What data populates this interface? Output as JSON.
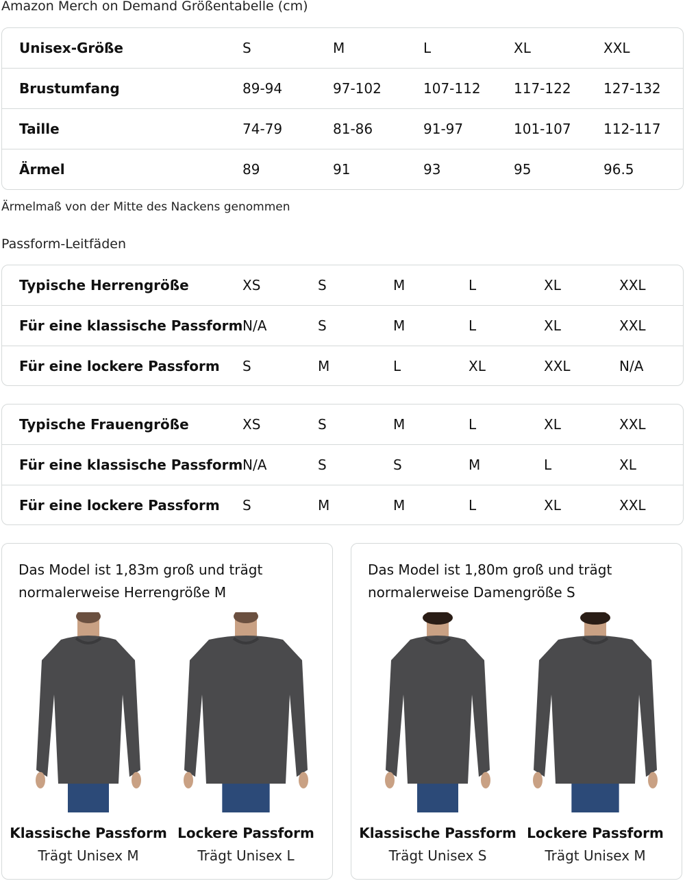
{
  "size_chart": {
    "title": "Amazon Merch on Demand Größentabelle (cm)",
    "rows": [
      {
        "label": "Unisex-Größe",
        "values": [
          "S",
          "M",
          "L",
          "XL",
          "XXL"
        ]
      },
      {
        "label": "Brustumfang",
        "values": [
          "89-94",
          "97-102",
          "107-112",
          "117-122",
          "127-132"
        ]
      },
      {
        "label": "Taille",
        "values": [
          "74-79",
          "81-86",
          "91-97",
          "101-107",
          "112-117"
        ]
      },
      {
        "label": "Ärmel",
        "values": [
          "89",
          "91",
          "93",
          "95",
          "96.5"
        ]
      }
    ],
    "note": "Ärmelmaß von der Mitte des Nackens genommen"
  },
  "fit_guides": {
    "title": "Passform-Leitfäden",
    "men": [
      {
        "label": "Typische Herrengröße",
        "values": [
          "XS",
          "S",
          "M",
          "L",
          "XL",
          "XXL"
        ]
      },
      {
        "label": "Für eine klassische Passform",
        "values": [
          "N/A",
          "S",
          "M",
          "L",
          "XL",
          "XXL"
        ]
      },
      {
        "label": "Für eine lockere Passform",
        "values": [
          "S",
          "M",
          "L",
          "XL",
          "XXL",
          "N/A"
        ]
      }
    ],
    "women": [
      {
        "label": "Typische Frauengröße",
        "values": [
          "XS",
          "S",
          "M",
          "L",
          "XL",
          "XXL"
        ]
      },
      {
        "label": "Für eine klassische Passform",
        "values": [
          "N/A",
          "S",
          "S",
          "M",
          "L",
          "XL"
        ]
      },
      {
        "label": "Für eine lockere Passform",
        "values": [
          "S",
          "M",
          "M",
          "L",
          "XL",
          "XXL"
        ]
      }
    ]
  },
  "models": [
    {
      "caption": "Das Model ist 1,83m groß und trägt normalerweise Herrengröße M",
      "figures": [
        {
          "name": "Klassische Passform",
          "sub": "Trägt Unisex M"
        },
        {
          "name": "Lockere Passform",
          "sub": "Trägt Unisex L"
        }
      ]
    },
    {
      "caption": "Das Model ist 1,80m groß und trägt normalerweise Damengröße S",
      "figures": [
        {
          "name": "Klassische Passform",
          "sub": "Trägt Unisex S"
        },
        {
          "name": "Lockere Passform",
          "sub": "Trägt Unisex M"
        }
      ]
    }
  ],
  "colors": {
    "border": "#d5d9d9",
    "sweater": "#4a4a4c",
    "jeans": "#2c4a78"
  }
}
